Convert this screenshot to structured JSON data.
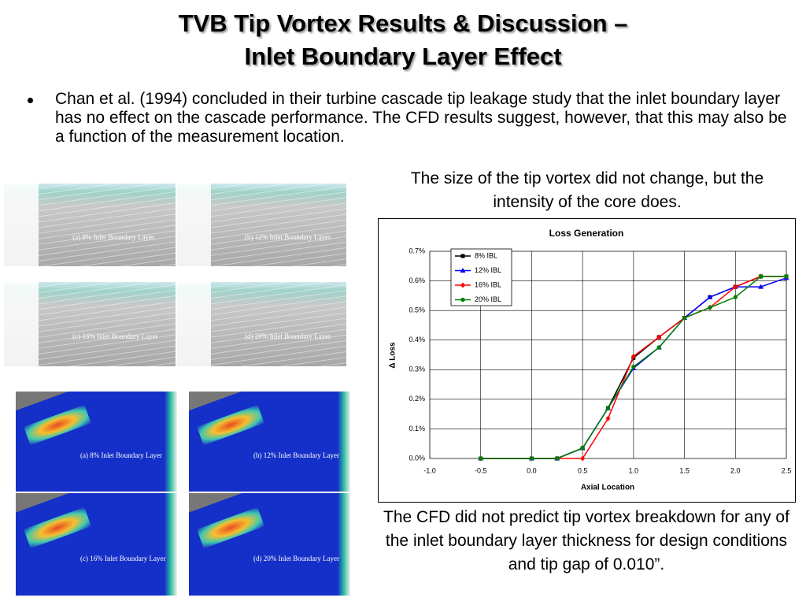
{
  "title": [
    "TVB Tip Vortex Results & Discussion –",
    "Inlet Boundary Layer Effect"
  ],
  "bullet": "Chan et al. (1994) concluded in their turbine cascade tip leakage study that the inlet boundary layer has no effect on the cascade performance.  The CFD results suggest, however, that this may also be a function of the measurement location.",
  "caption_top": "The size of the tip vortex did not change, but the intensity of the core does.",
  "caption_bottom": "The CFD did not predict tip vortex breakdown for any of the inlet boundary layer thickness for design conditions and tip gap of 0.010”.",
  "streamline_images": [
    "(a) 8% Inlet Boundary Layer",
    "(b) 12% Inlet Boundary Layer",
    "(c) 16% Inlet Boundary Layer",
    "(d) 20% Inlet Boundary Layer"
  ],
  "contour_images": [
    "(a) 8% Inlet Boundary Layer",
    "(b) 12% Inlet Boundary Layer",
    "(c) 16% Inlet Boundary Layer",
    "(d) 20% Inlet Boundary Layer"
  ],
  "chart_data": {
    "type": "line",
    "title": "Loss Generation",
    "xlabel": "Axial Location",
    "ylabel": "Δ Loss",
    "x": [
      -0.5,
      0,
      0.25,
      0.5,
      0.75,
      1.0,
      1.25,
      1.5,
      1.75,
      2.0,
      2.25,
      2.5
    ],
    "series": [
      {
        "name": "8% IBL",
        "color": "#000000",
        "values": [
          0,
          0,
          0,
          0.035,
          0.17,
          0.34,
          0.41,
          0.475,
          0.545,
          0.58,
          0.615,
          0.615
        ]
      },
      {
        "name": "12% IBL",
        "color": "#0000ff",
        "values": [
          0,
          0,
          0,
          0.035,
          0.17,
          0.305,
          0.375,
          0.475,
          0.545,
          0.58,
          0.58,
          0.61
        ]
      },
      {
        "name": "16% IBL",
        "color": "#ff0000",
        "values": [
          0,
          0,
          0,
          0,
          0.135,
          0.345,
          0.41,
          0.475,
          0.51,
          0.58,
          0.615,
          0.615
        ]
      },
      {
        "name": "20% IBL",
        "color": "#008000",
        "values": [
          0,
          0,
          0,
          0.035,
          0.17,
          0.31,
          0.375,
          0.475,
          0.51,
          0.545,
          0.615,
          0.615
        ]
      }
    ],
    "xlim": [
      -1,
      2.5
    ],
    "xticks": [
      {
        "value": -1,
        "label": "-1.0"
      },
      -0.5,
      {
        "value": 0,
        "label": "0.0"
      },
      0.5,
      {
        "value": 1,
        "label": "1.0"
      },
      1.5,
      {
        "value": 2,
        "label": "2.0"
      },
      2.5
    ],
    "ylim": [
      0,
      0.7
    ],
    "yticks": [
      {
        "value": 0,
        "label": "0.0%"
      },
      {
        "value": 0.1,
        "label": "0.1%"
      },
      {
        "value": 0.2,
        "label": "0.2%"
      },
      {
        "value": 0.3,
        "label": "0.3%"
      },
      {
        "value": 0.4,
        "label": "0.4%"
      },
      {
        "value": 0.5,
        "label": "0.5%"
      },
      {
        "value": 0.6,
        "label": "0.6%"
      },
      {
        "value": 0.7,
        "label": "0.7%"
      }
    ],
    "grid": true,
    "legend": "upper-left"
  }
}
